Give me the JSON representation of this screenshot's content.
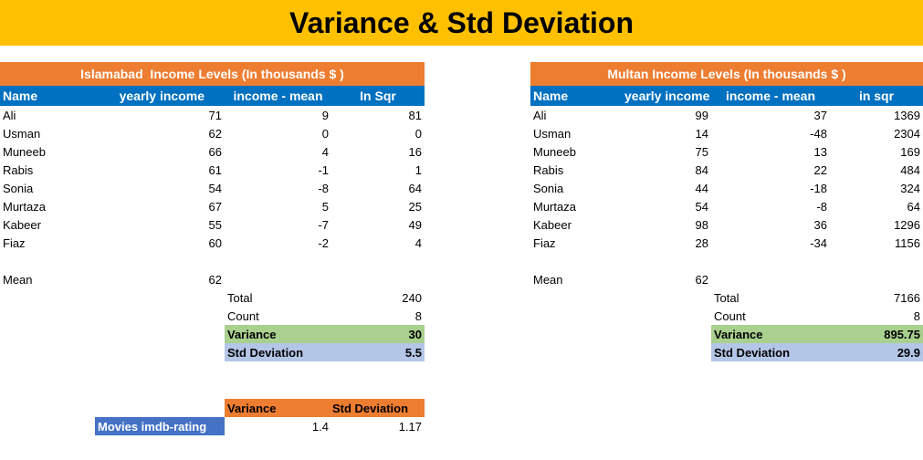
{
  "title": "Variance & Std Deviation",
  "islamabad": {
    "banner": "Islamabad  Income Levels (In thousands $ )",
    "headers": [
      "Name",
      "yearly income",
      "income - mean",
      "In Sqr"
    ],
    "rows": [
      {
        "name": "Ali",
        "income": "71",
        "diff": "9",
        "sqr": "81"
      },
      {
        "name": "Usman",
        "income": "62",
        "diff": "0",
        "sqr": "0"
      },
      {
        "name": "Muneeb",
        "income": "66",
        "diff": "4",
        "sqr": "16"
      },
      {
        "name": "Rabis",
        "income": "61",
        "diff": "-1",
        "sqr": "1"
      },
      {
        "name": "Sonia",
        "income": "54",
        "diff": "-8",
        "sqr": "64"
      },
      {
        "name": "Murtaza",
        "income": "67",
        "diff": "5",
        "sqr": "25"
      },
      {
        "name": "Kabeer",
        "income": "55",
        "diff": "-7",
        "sqr": "49"
      },
      {
        "name": "Fiaz",
        "income": "60",
        "diff": "-2",
        "sqr": "4"
      }
    ],
    "mean_label": "Mean",
    "mean_value": "62",
    "total_label": "Total",
    "total_value": "240",
    "count_label": "Count",
    "count_value": "8",
    "variance_label": "Variance",
    "variance_value": "30",
    "std_label": "Std Deviation",
    "std_value": "5.5"
  },
  "multan": {
    "banner": "Multan Income Levels (In thousands $ )",
    "headers": [
      "Name",
      "yearly income",
      "income - mean",
      "in sqr"
    ],
    "rows": [
      {
        "name": "Ali",
        "income": "99",
        "diff": "37",
        "sqr": "1369"
      },
      {
        "name": "Usman",
        "income": "14",
        "diff": "-48",
        "sqr": "2304"
      },
      {
        "name": "Muneeb",
        "income": "75",
        "diff": "13",
        "sqr": "169"
      },
      {
        "name": "Rabis",
        "income": "84",
        "diff": "22",
        "sqr": "484"
      },
      {
        "name": "Sonia",
        "income": "44",
        "diff": "-18",
        "sqr": "324"
      },
      {
        "name": "Murtaza",
        "income": "54",
        "diff": "-8",
        "sqr": "64"
      },
      {
        "name": "Kabeer",
        "income": "98",
        "diff": "36",
        "sqr": "1296"
      },
      {
        "name": "Fiaz",
        "income": "28",
        "diff": "-34",
        "sqr": "1156"
      }
    ],
    "mean_label": "Mean",
    "mean_value": "62",
    "total_label": "Total",
    "total_value": "7166",
    "count_label": "Count",
    "count_value": "8",
    "variance_label": "Variance",
    "variance_value": "895.75",
    "std_label": "Std Deviation",
    "std_value": "29.9"
  },
  "movies": {
    "variance_header": "Variance",
    "std_header": "Std Deviation",
    "label": "Movies imdb-rating",
    "variance_value": "1.4",
    "std_value": "1.17"
  },
  "colors": {
    "title_bg": "#FFC000",
    "banner_bg": "#ED7D31",
    "header_bg": "#0070C0",
    "variance_bg": "#A9D08E",
    "std_bg": "#B4C6E7",
    "movies_label_bg": "#4472C4"
  }
}
